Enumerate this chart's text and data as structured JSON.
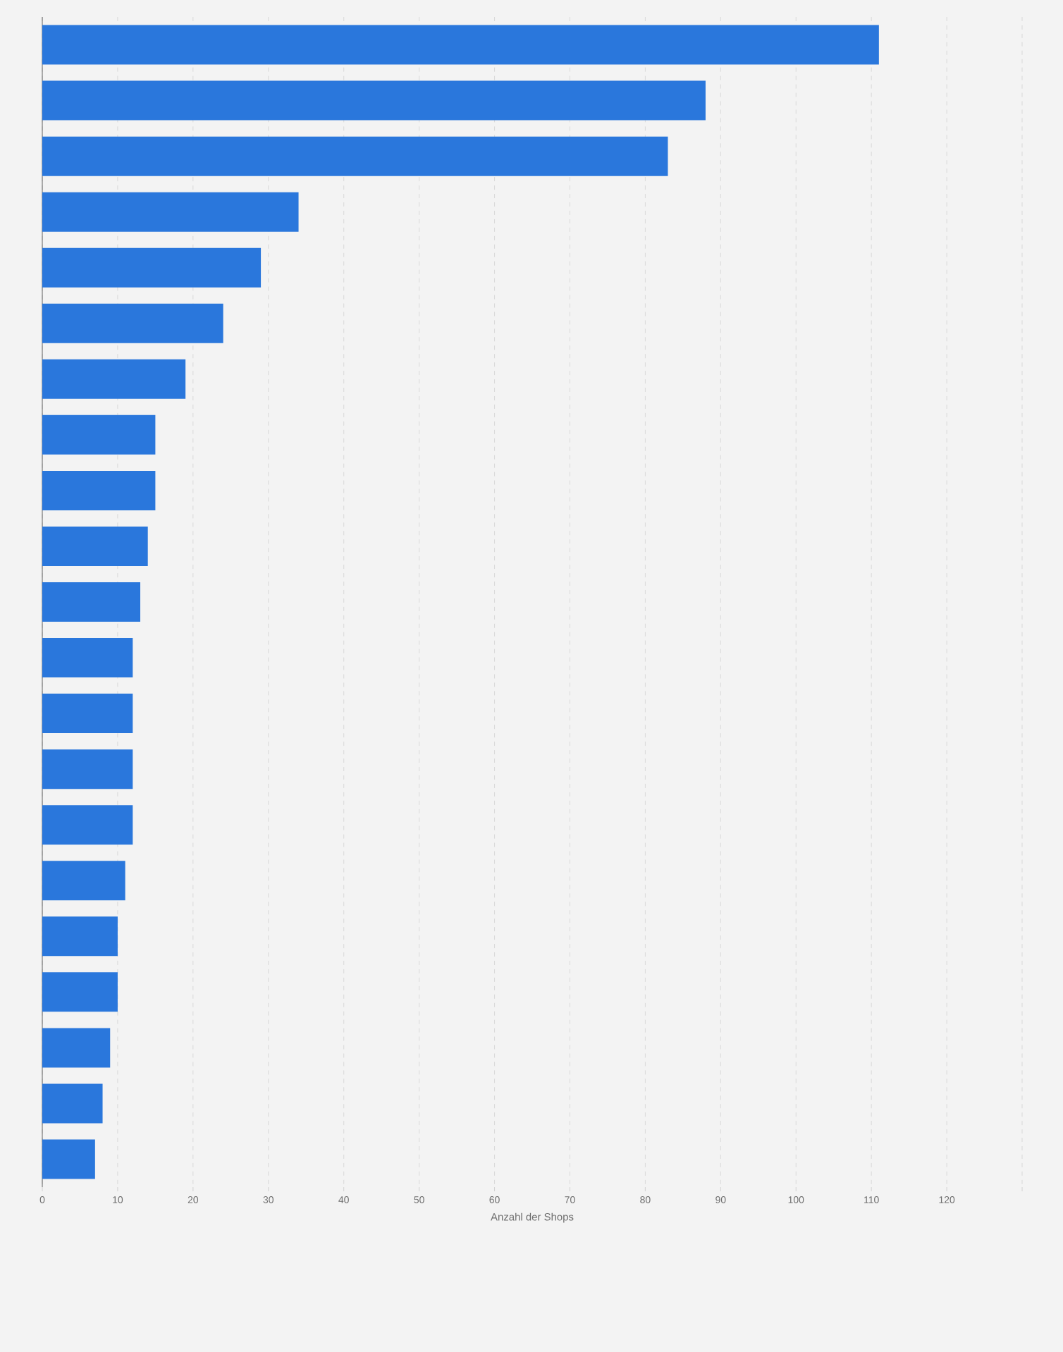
{
  "chart_data": {
    "type": "bar",
    "orientation": "horizontal",
    "xlabel": "Anzahl der Shops",
    "categories": [
      null,
      null,
      null,
      null,
      null,
      null,
      null,
      null,
      null,
      null,
      null,
      null,
      null,
      null,
      null,
      null,
      null,
      null,
      null,
      null,
      null
    ],
    "values": [
      111,
      88,
      83,
      34,
      29,
      24,
      19,
      15,
      15,
      14,
      13,
      12,
      12,
      12,
      12,
      11,
      10,
      10,
      9,
      8,
      7
    ],
    "color": "#2a77dc",
    "xlim": [
      0,
      130
    ],
    "xticks": [
      0,
      10,
      20,
      30,
      40,
      50,
      60,
      70,
      80,
      90,
      100,
      110,
      120,
      {
        "value": 130,
        "label": null
      }
    ],
    "grid": "x"
  }
}
